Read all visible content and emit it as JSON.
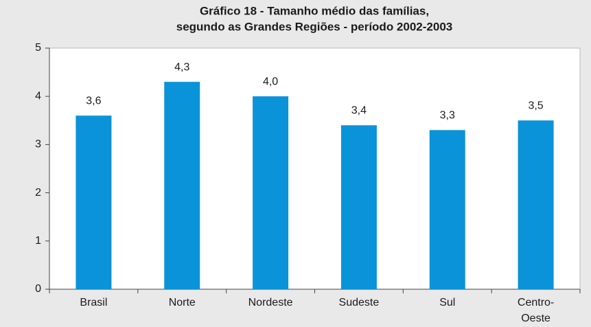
{
  "chart_data": {
    "type": "bar",
    "title": [
      "Gráfico 18 - Tamanho médio das famílias,",
      "segundo as Grandes Regiões - período 2002-2003"
    ],
    "categories": [
      "Brasil",
      "Norte",
      "Nordeste",
      "Sudeste",
      "Sul",
      "Centro-Oeste"
    ],
    "values": [
      3.6,
      4.3,
      4.0,
      3.4,
      3.3,
      3.5
    ],
    "value_labels": [
      "3,6",
      "4,3",
      "4,0",
      "3,4",
      "3,3",
      "3,5"
    ],
    "color": "#0a93d8",
    "ylim": [
      0,
      5
    ],
    "yticks": [
      0,
      1,
      2,
      3,
      4,
      5
    ],
    "grid": false
  }
}
